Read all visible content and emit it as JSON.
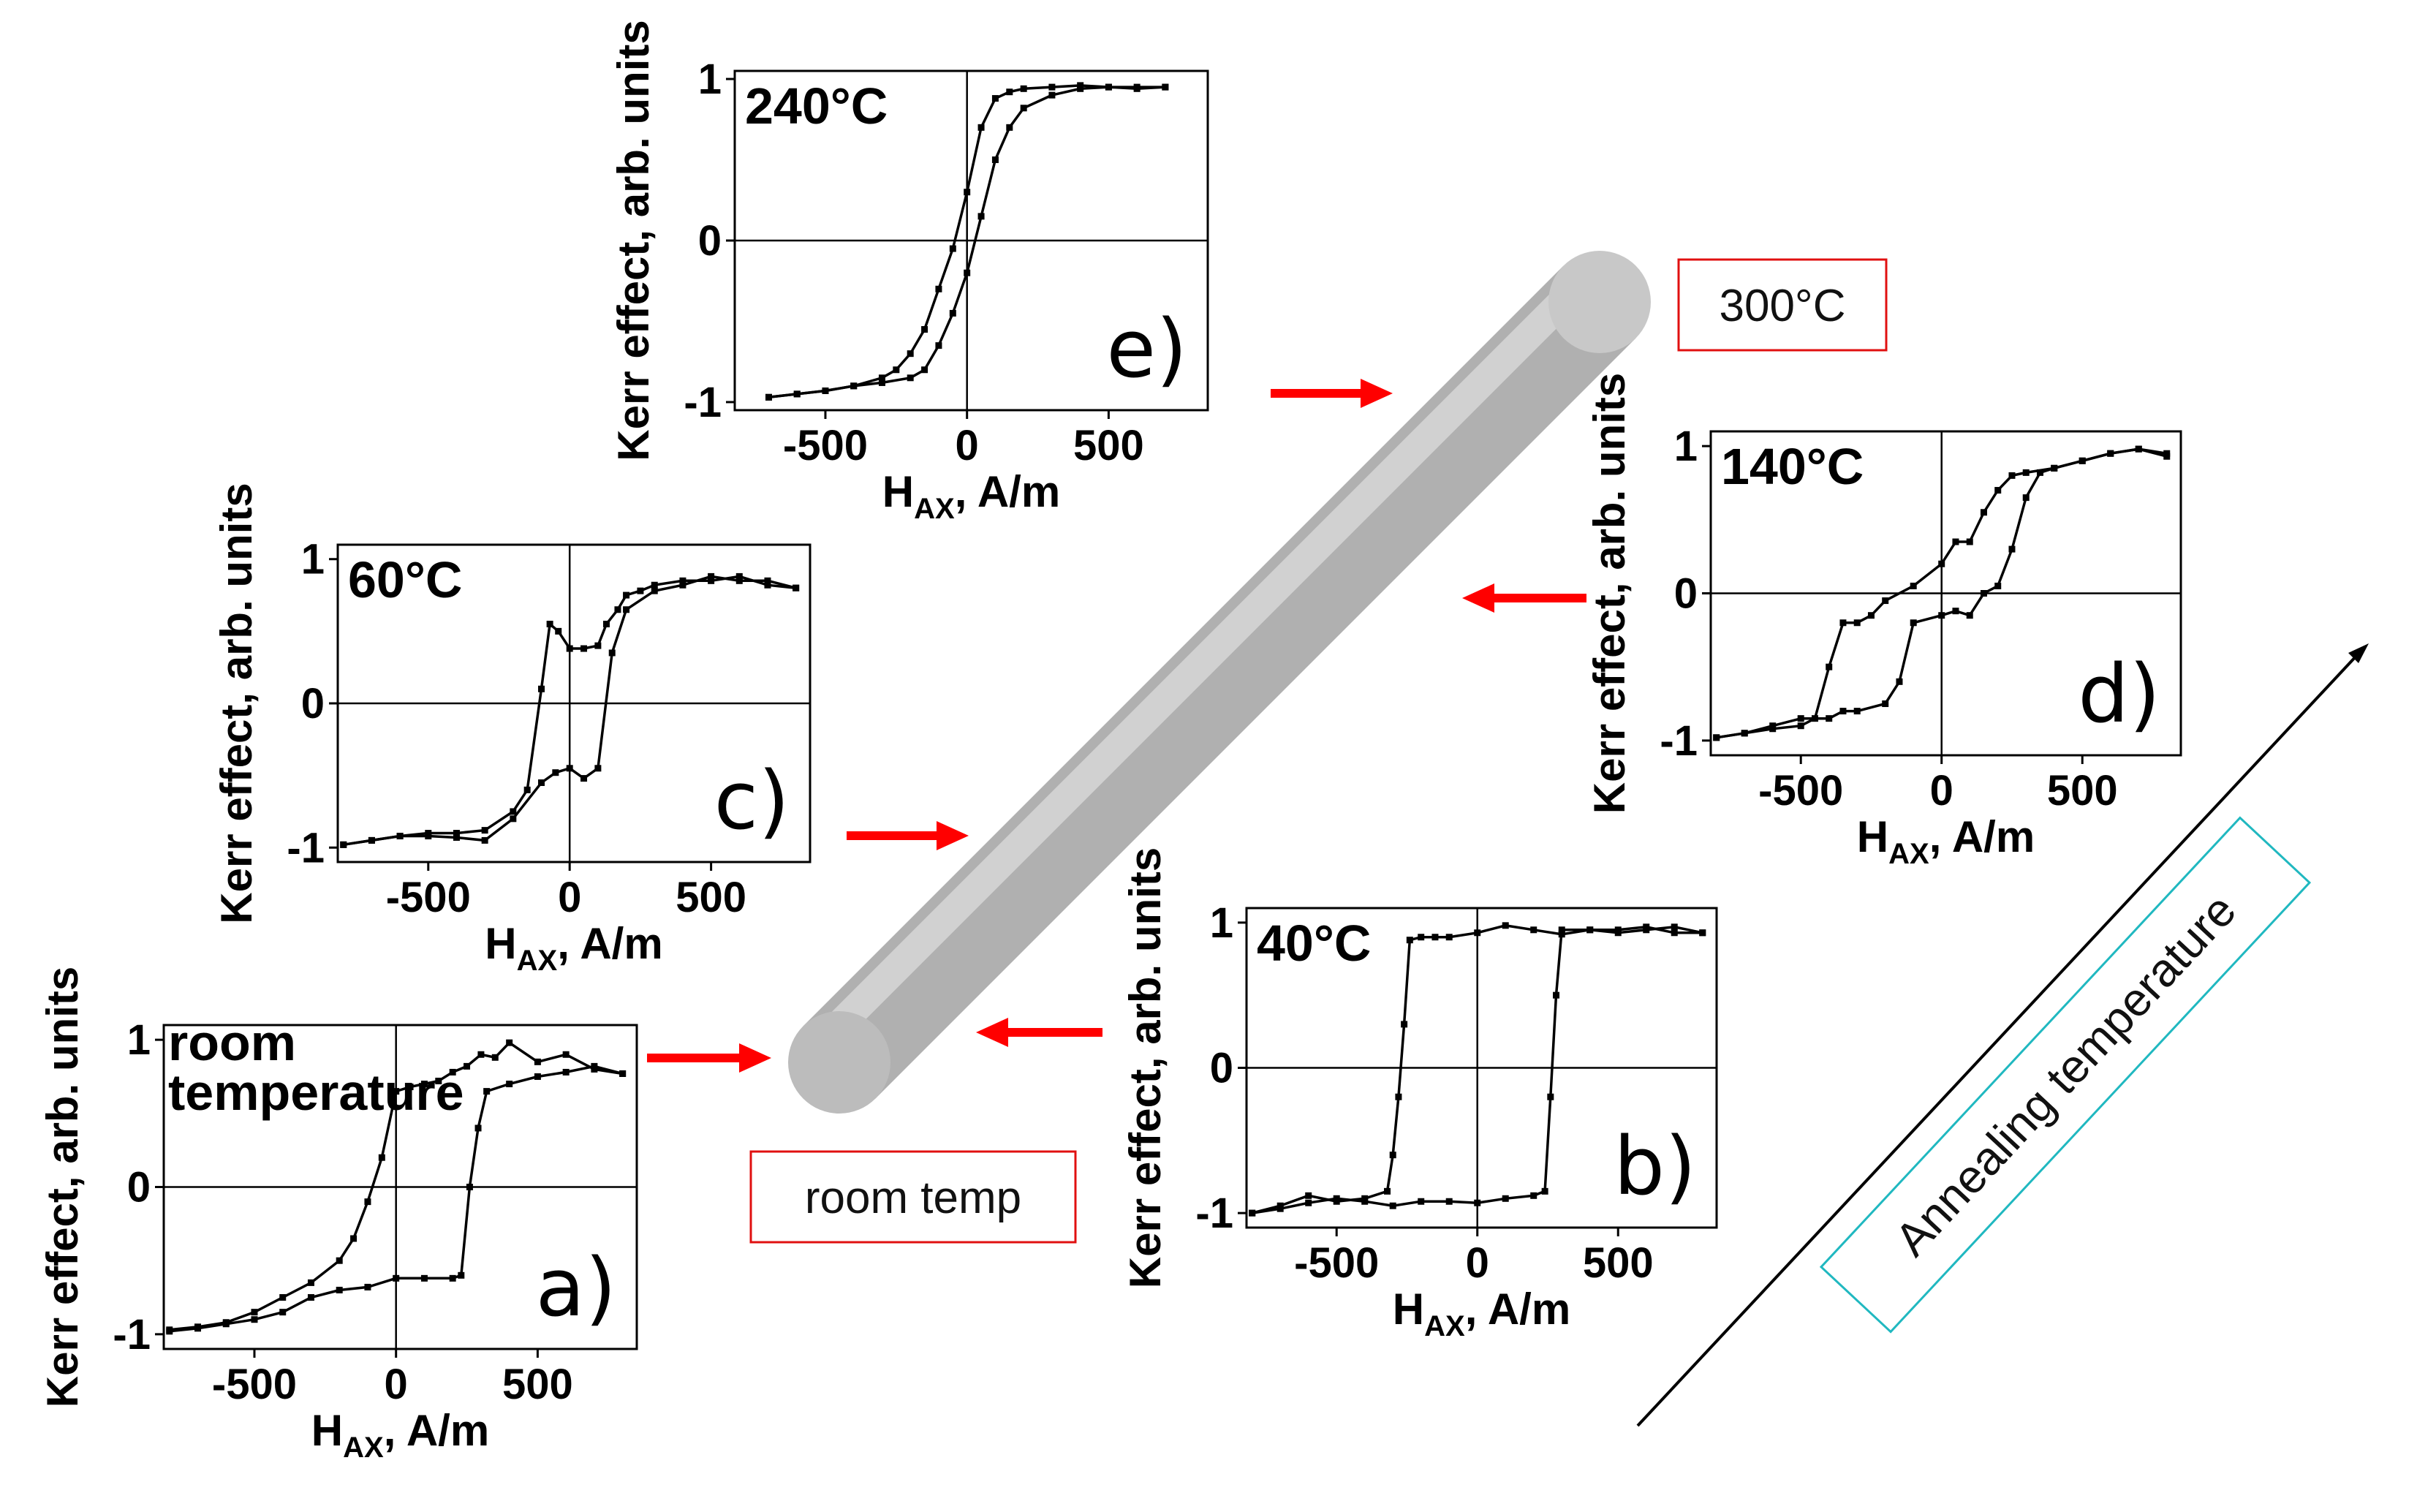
{
  "chart_data": [
    {
      "id": "a",
      "type": "line",
      "panel_label": "a)",
      "temp_label": [
        "room",
        "temperature"
      ],
      "xlabel_main": "H",
      "xlabel_sub": "AX",
      "xlabel_rest": ", A/m",
      "ylabel": "Kerr effect, arb. units",
      "xlim": [
        -820,
        850
      ],
      "ylim": [
        -1.1,
        1.1
      ],
      "xticks": [
        -500,
        0,
        500
      ],
      "yticks": [
        -1,
        0,
        1
      ],
      "series": [
        {
          "x": [
            -800,
            -700,
            -600,
            -500,
            -400,
            -300,
            -200,
            -150,
            -100,
            -50,
            0,
            50,
            100,
            150,
            200,
            250,
            300,
            350,
            400,
            500,
            600,
            700,
            800
          ],
          "y": [
            -0.97,
            -0.95,
            -0.92,
            -0.85,
            -0.75,
            -0.65,
            -0.5,
            -0.35,
            -0.1,
            0.2,
            0.65,
            0.68,
            0.7,
            0.72,
            0.78,
            0.82,
            0.9,
            0.88,
            0.98,
            0.85,
            0.9,
            0.8,
            0.77
          ]
        },
        {
          "x": [
            -800,
            -700,
            -600,
            -500,
            -400,
            -300,
            -200,
            -100,
            0,
            100,
            200,
            230,
            260,
            290,
            320,
            400,
            500,
            600,
            700,
            800
          ],
          "y": [
            -0.98,
            -0.96,
            -0.93,
            -0.9,
            -0.85,
            -0.75,
            -0.7,
            -0.68,
            -0.62,
            -0.62,
            -0.62,
            -0.6,
            0.0,
            0.4,
            0.65,
            0.7,
            0.75,
            0.78,
            0.82,
            0.77
          ]
        }
      ]
    },
    {
      "id": "b",
      "type": "line",
      "panel_label": "b)",
      "temp_label": [
        "40°C"
      ],
      "xlabel_main": "H",
      "xlabel_sub": "AX",
      "xlabel_rest": ", A/m",
      "ylabel": "Kerr effect, arb. units",
      "xlim": [
        -820,
        850
      ],
      "ylim": [
        -1.1,
        1.1
      ],
      "xticks": [
        -500,
        0,
        500
      ],
      "yticks": [
        -1,
        0,
        1
      ],
      "series": [
        {
          "x": [
            -800,
            -700,
            -600,
            -500,
            -400,
            -320,
            -300,
            -280,
            -260,
            -240,
            -200,
            -150,
            -100,
            0,
            100,
            200,
            300,
            400,
            500,
            600,
            700,
            800
          ],
          "y": [
            -1.0,
            -0.95,
            -0.88,
            -0.92,
            -0.9,
            -0.85,
            -0.6,
            -0.2,
            0.3,
            0.88,
            0.9,
            0.9,
            0.9,
            0.93,
            0.98,
            0.95,
            0.92,
            0.95,
            0.93,
            0.95,
            0.97,
            0.93
          ]
        },
        {
          "x": [
            -800,
            -700,
            -600,
            -500,
            -400,
            -300,
            -200,
            -100,
            0,
            100,
            200,
            240,
            260,
            280,
            300,
            400,
            500,
            600,
            700,
            800
          ],
          "y": [
            -1.0,
            -0.97,
            -0.93,
            -0.9,
            -0.92,
            -0.95,
            -0.92,
            -0.92,
            -0.93,
            -0.9,
            -0.88,
            -0.85,
            -0.2,
            0.5,
            0.95,
            0.95,
            0.95,
            0.97,
            0.93,
            0.93
          ]
        }
      ]
    },
    {
      "id": "c",
      "type": "line",
      "panel_label": "c)",
      "temp_label": [
        "60°C"
      ],
      "xlabel_main": "H",
      "xlabel_sub": "AX",
      "xlabel_rest": ", A/m",
      "ylabel": "Kerr effect, arb. units",
      "xlim": [
        -820,
        850
      ],
      "ylim": [
        -1.1,
        1.1
      ],
      "xticks": [
        -500,
        0,
        500
      ],
      "yticks": [
        -1,
        0,
        1
      ],
      "series": [
        {
          "x": [
            -800,
            -700,
            -600,
            -500,
            -400,
            -300,
            -200,
            -150,
            -100,
            -70,
            -40,
            0,
            50,
            100,
            130,
            170,
            200,
            250,
            300,
            400,
            500,
            600,
            700,
            800
          ],
          "y": [
            -0.98,
            -0.95,
            -0.92,
            -0.9,
            -0.9,
            -0.88,
            -0.75,
            -0.6,
            0.1,
            0.55,
            0.5,
            0.38,
            0.38,
            0.4,
            0.55,
            0.65,
            0.75,
            0.78,
            0.82,
            0.85,
            0.85,
            0.88,
            0.82,
            0.8
          ]
        },
        {
          "x": [
            -800,
            -700,
            -600,
            -500,
            -400,
            -300,
            -200,
            -100,
            -50,
            0,
            50,
            100,
            150,
            200,
            300,
            400,
            500,
            600,
            700,
            800
          ],
          "y": [
            -0.98,
            -0.95,
            -0.92,
            -0.92,
            -0.93,
            -0.95,
            -0.8,
            -0.55,
            -0.48,
            -0.45,
            -0.52,
            -0.45,
            0.35,
            0.65,
            0.78,
            0.82,
            0.88,
            0.85,
            0.85,
            0.8
          ]
        }
      ]
    },
    {
      "id": "d",
      "type": "line",
      "panel_label": "d)",
      "temp_label": [
        "140°C"
      ],
      "xlabel_main": "H",
      "xlabel_sub": "AX",
      "xlabel_rest": ", A/m",
      "ylabel": "Kerr effect, arb. units",
      "xlim": [
        -820,
        850
      ],
      "ylim": [
        -1.1,
        1.1
      ],
      "xticks": [
        -500,
        0,
        500
      ],
      "yticks": [
        -1,
        0,
        1
      ],
      "series": [
        {
          "x": [
            -800,
            -700,
            -600,
            -500,
            -450,
            -400,
            -350,
            -300,
            -250,
            -200,
            -100,
            0,
            50,
            100,
            150,
            200,
            250,
            300,
            400,
            500,
            600,
            700,
            800
          ],
          "y": [
            -0.98,
            -0.95,
            -0.92,
            -0.9,
            -0.85,
            -0.5,
            -0.2,
            -0.2,
            -0.15,
            -0.05,
            0.05,
            0.2,
            0.35,
            0.35,
            0.55,
            0.7,
            0.8,
            0.82,
            0.85,
            0.9,
            0.95,
            0.98,
            0.95
          ]
        },
        {
          "x": [
            -800,
            -700,
            -600,
            -500,
            -400,
            -350,
            -300,
            -200,
            -150,
            -100,
            0,
            50,
            100,
            150,
            200,
            250,
            300,
            350,
            400,
            500,
            600,
            700,
            800
          ],
          "y": [
            -0.98,
            -0.95,
            -0.9,
            -0.85,
            -0.85,
            -0.8,
            -0.8,
            -0.75,
            -0.6,
            -0.2,
            -0.15,
            -0.12,
            -0.15,
            0.0,
            0.05,
            0.3,
            0.65,
            0.82,
            0.85,
            0.9,
            0.95,
            0.98,
            0.93
          ]
        }
      ]
    },
    {
      "id": "e",
      "type": "line",
      "panel_label": "e)",
      "temp_label": [
        "240°C"
      ],
      "xlabel_main": "H",
      "xlabel_sub": "AX",
      "xlabel_rest": ", A/m",
      "ylabel": "Kerr effect, arb. units",
      "xlim": [
        -820,
        850
      ],
      "ylim": [
        -1.05,
        1.05
      ],
      "xticks": [
        -500,
        0,
        500
      ],
      "yticks": [
        -1,
        0,
        1
      ],
      "series": [
        {
          "x": [
            -700,
            -600,
            -500,
            -400,
            -300,
            -250,
            -200,
            -150,
            -100,
            -50,
            0,
            50,
            100,
            150,
            200,
            300,
            400,
            500,
            600,
            700
          ],
          "y": [
            -0.97,
            -0.95,
            -0.93,
            -0.9,
            -0.85,
            -0.8,
            -0.7,
            -0.55,
            -0.3,
            -0.05,
            0.3,
            0.7,
            0.88,
            0.92,
            0.94,
            0.95,
            0.96,
            0.95,
            0.94,
            0.95
          ]
        },
        {
          "x": [
            -700,
            -600,
            -500,
            -400,
            -300,
            -200,
            -150,
            -100,
            -50,
            0,
            50,
            100,
            150,
            200,
            300,
            400,
            500,
            600,
            700
          ],
          "y": [
            -0.97,
            -0.95,
            -0.93,
            -0.9,
            -0.88,
            -0.85,
            -0.8,
            -0.65,
            -0.45,
            -0.2,
            0.15,
            0.5,
            0.7,
            0.82,
            0.9,
            0.94,
            0.95,
            0.95,
            0.95
          ]
        }
      ]
    }
  ],
  "annotations": {
    "label_300": "300°C",
    "label_room": "room temp",
    "annealing": "Annealing temperature"
  },
  "colors": {
    "arrow": "#ff0000",
    "box_red": "#e01010",
    "box_teal": "#20b8c0",
    "rod": "#b4b4b4"
  }
}
